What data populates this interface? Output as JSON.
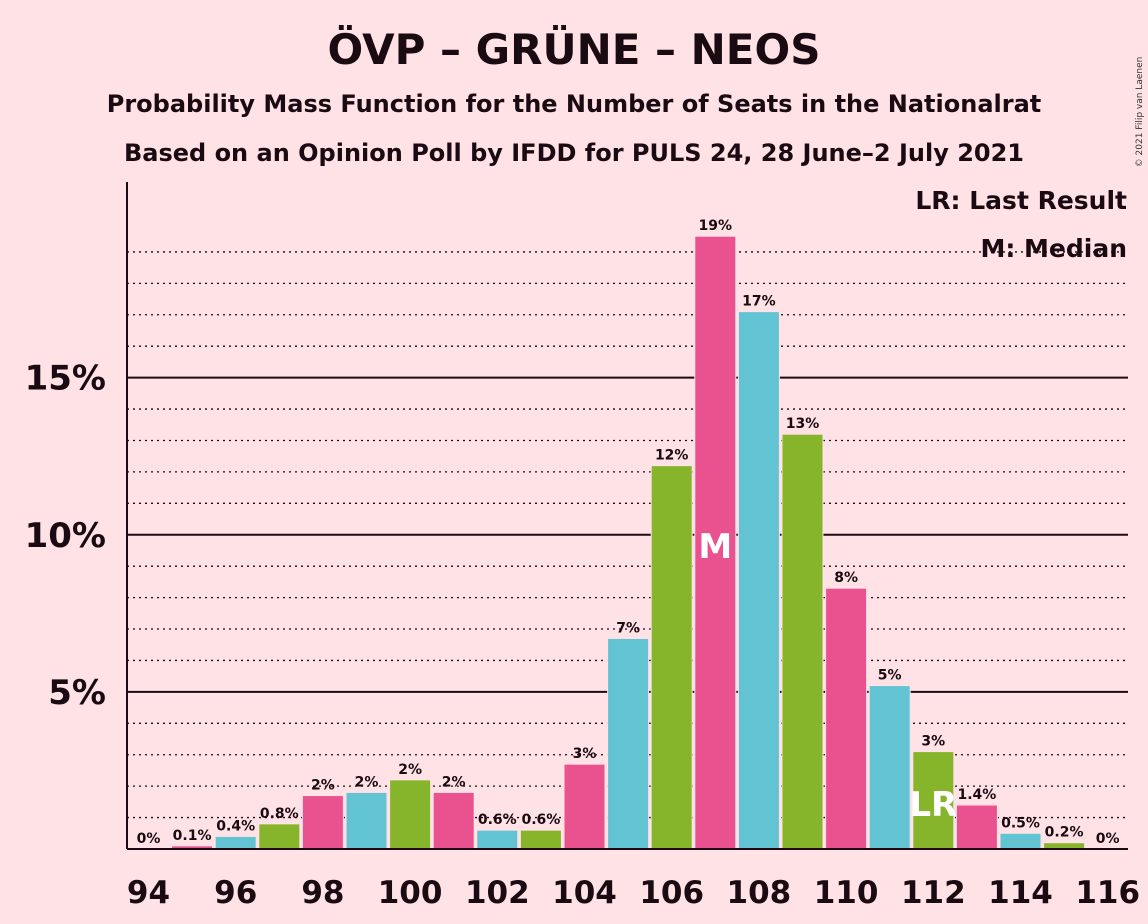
{
  "title": "ÖVP – GRÜNE – NEOS",
  "subtitle1": "Probability Mass Function for the Number of Seats in the Nationalrat",
  "subtitle2": "Based on an Opinion Poll by IFDD for PULS 24, 28 June–2 July 2021",
  "copyright": "© 2021 Filip van Laenen",
  "legend": {
    "lr": "LR: Last Result",
    "m": "M: Median"
  },
  "colors": {
    "background": "#FFE2E6",
    "pink": "#E9528E",
    "blue": "#62C3D3",
    "green": "#86B52C"
  },
  "chart_data": {
    "type": "bar",
    "x": [
      94,
      95,
      96,
      97,
      98,
      99,
      100,
      101,
      102,
      103,
      104,
      105,
      106,
      107,
      108,
      109,
      110,
      111,
      112,
      113,
      114,
      115,
      116
    ],
    "values": [
      0,
      0.1,
      0.4,
      0.8,
      1.7,
      1.8,
      2.2,
      1.8,
      0.6,
      0.6,
      2.7,
      6.7,
      12.2,
      19.5,
      17.1,
      13.2,
      8.3,
      5.2,
      3.1,
      1.4,
      0.5,
      0.2,
      0
    ],
    "labels": [
      "0%",
      "0.1%",
      "0.4%",
      "0.8%",
      "2%",
      "2%",
      "2%",
      "2%",
      "0.6%",
      "0.6%",
      "3%",
      "7%",
      "12%",
      "19%",
      "17%",
      "13%",
      "8%",
      "5%",
      "3%",
      "1.4%",
      "0.5%",
      "0.2%",
      "0%"
    ],
    "bar_colors": [
      "pink",
      "pink",
      "blue",
      "green",
      "pink",
      "blue",
      "green",
      "pink",
      "blue",
      "green",
      "pink",
      "blue",
      "green",
      "pink",
      "blue",
      "green",
      "pink",
      "blue",
      "green",
      "pink",
      "blue",
      "green",
      "pink"
    ],
    "xticks": [
      94,
      96,
      98,
      100,
      102,
      104,
      106,
      108,
      110,
      112,
      114,
      116
    ],
    "yticks": [
      5,
      10,
      15
    ],
    "ytick_labels": [
      "5%",
      "10%",
      "15%"
    ],
    "ylim": [
      0,
      21
    ],
    "median_x": 107,
    "median_label": "M",
    "last_result_x": 112,
    "last_result_label": "LR"
  }
}
